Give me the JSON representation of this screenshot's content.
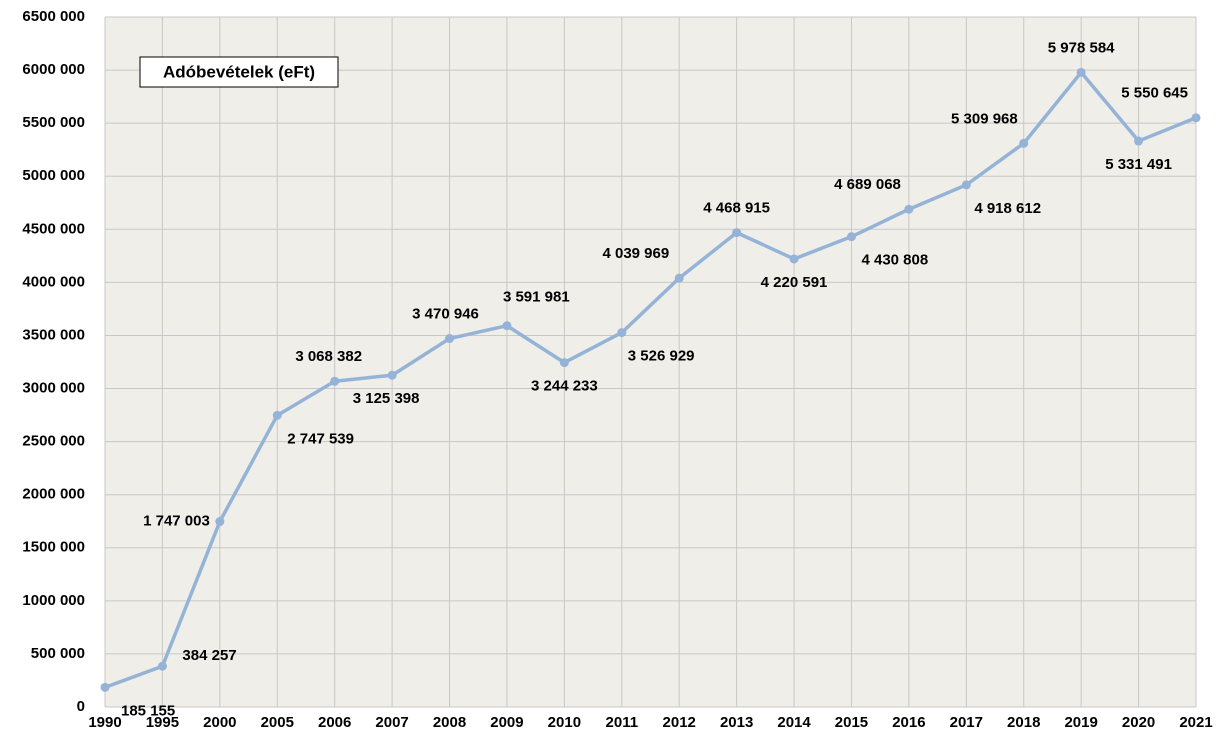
{
  "chart_data": {
    "type": "line",
    "title": "Adóbevételek (eFt)",
    "categories": [
      "1990",
      "1995",
      "2000",
      "2005",
      "2006",
      "2007",
      "2008",
      "2009",
      "2010",
      "2011",
      "2012",
      "2013",
      "2014",
      "2015",
      "2016",
      "2017",
      "2018",
      "2019",
      "2020",
      "2021"
    ],
    "series": [
      {
        "name": "Adóbevételek (eFt)",
        "color": "#95b3d7",
        "values": [
          185155,
          384257,
          1747003,
          2747539,
          3068382,
          3125398,
          3470946,
          3591981,
          3244233,
          3526929,
          4039969,
          4468915,
          4220591,
          4430808,
          4689068,
          4918612,
          5309968,
          5978584,
          5331491,
          5550645
        ],
        "value_labels": [
          "185 155",
          "384 257",
          "1 747 003",
          "2 747 539",
          "3 068 382",
          "3 125 398",
          "3 470 946",
          "3 591 981",
          "3 244 233",
          "3 526 929",
          "4 039 969",
          "4 468 915",
          "4 220 591",
          "4 430 808",
          "4 689 068",
          "4 918 612",
          "5 309 968",
          "5 978 584",
          "5 331 491",
          "5 550 645"
        ]
      }
    ],
    "ylim": [
      0,
      6500000
    ],
    "yticks": [
      0,
      {
        "value": 500000,
        "label": "500 000"
      },
      {
        "value": 1000000,
        "label": "1000 000"
      },
      {
        "value": 1500000,
        "label": "1500 000"
      },
      {
        "value": 2000000,
        "label": "2000 000"
      },
      {
        "value": 2500000,
        "label": "2500 000"
      },
      {
        "value": 3000000,
        "label": "3000 000"
      },
      {
        "value": 3500000,
        "label": "3500 000"
      },
      {
        "value": 4000000,
        "label": "4000 000"
      },
      {
        "value": 4500000,
        "label": "4500 000"
      },
      {
        "value": 5000000,
        "label": "5000 000"
      },
      {
        "value": 5500000,
        "label": "5500 000"
      },
      {
        "value": 6000000,
        "label": "6000 000"
      },
      {
        "value": 6500000,
        "label": "6500 000"
      }
    ],
    "grid": true
  }
}
